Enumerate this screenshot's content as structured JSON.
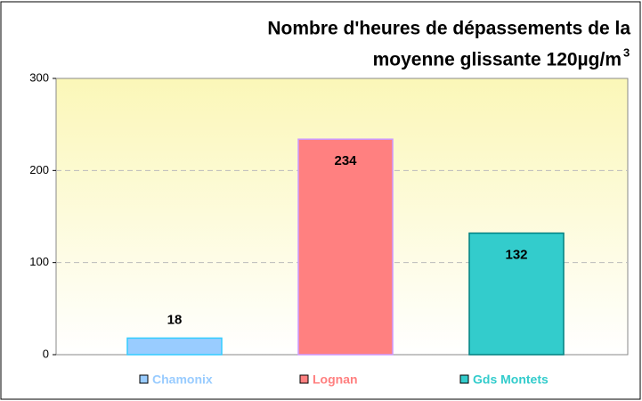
{
  "chart_data": {
    "type": "bar",
    "title": [
      "Nombre d'heures de dépassements de la",
      "moyenne glissante 120µg/m"
    ],
    "title_superscript": "3",
    "categories": [
      "Chamonix",
      "Lognan",
      "Gds Montets"
    ],
    "values": [
      18,
      234,
      132
    ],
    "colors": [
      "#99ccff",
      "#ff8080",
      "#33cccc"
    ],
    "edge_colors": [
      "#33ccff",
      "#cc99ff",
      "#008080"
    ],
    "ylim": [
      0,
      300
    ],
    "yticks": [
      0,
      100,
      200,
      300
    ],
    "grid": true
  }
}
